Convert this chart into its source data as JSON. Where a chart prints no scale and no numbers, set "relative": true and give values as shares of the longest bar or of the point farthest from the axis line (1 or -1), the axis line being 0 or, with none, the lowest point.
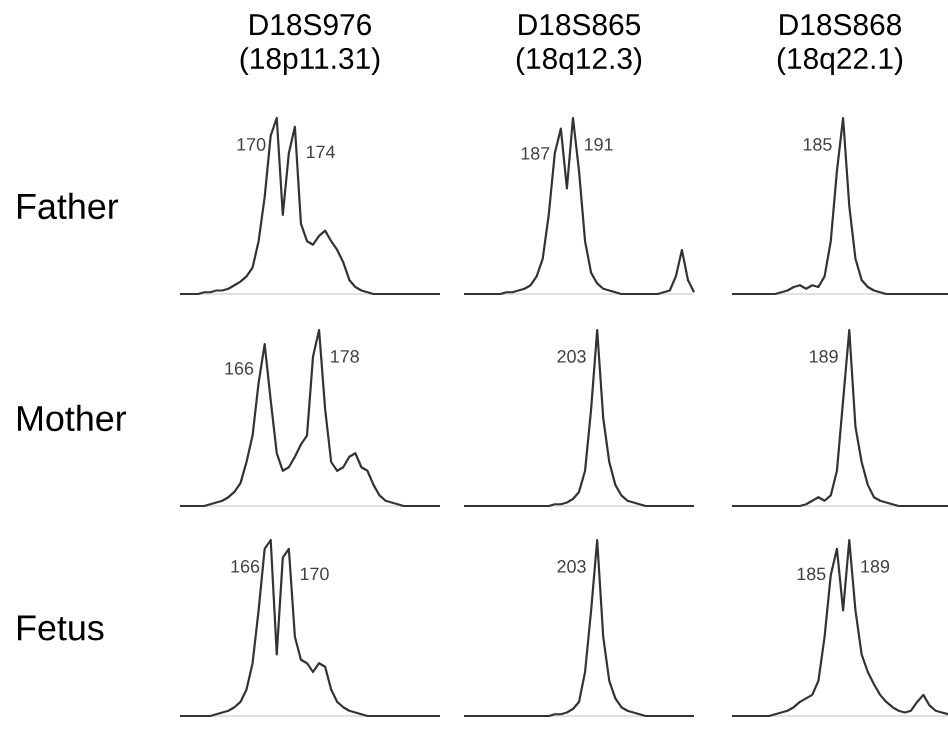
{
  "chart_data": [
    {
      "type": "line",
      "title": "D18S976",
      "subtitle": "(18p11.31)",
      "ylabel": "Father",
      "relative": true,
      "tick_labels": false,
      "color": "#333333",
      "annotations": [
        "170",
        "174"
      ],
      "categories": [
        null,
        null,
        null,
        null,
        null,
        null,
        null,
        null,
        null,
        null,
        null,
        null,
        null,
        null,
        null,
        null,
        null,
        null,
        null,
        null,
        null,
        null,
        null,
        null,
        null,
        null,
        null,
        null,
        null,
        null,
        null,
        null,
        null,
        null,
        null,
        null,
        null,
        null,
        null,
        null,
        null,
        null,
        null,
        null
      ],
      "values": [
        0,
        0,
        0,
        0,
        0.01,
        0.01,
        0.02,
        0.02,
        0.03,
        0.05,
        0.07,
        0.1,
        0.15,
        0.3,
        0.55,
        0.9,
        1.0,
        0.45,
        0.8,
        0.95,
        0.4,
        0.3,
        0.28,
        0.33,
        0.36,
        0.3,
        0.25,
        0.18,
        0.08,
        0.04,
        0.02,
        0.01,
        0,
        0,
        0,
        0,
        0,
        0,
        0,
        0,
        0,
        0,
        0,
        0
      ]
    },
    {
      "type": "line",
      "title": "D18S865",
      "subtitle": "(18q12.3)",
      "relative": true,
      "tick_labels": false,
      "color": "#333333",
      "annotations": [
        "187",
        "191"
      ],
      "categories": [
        null,
        null,
        null,
        null,
        null,
        null,
        null,
        null,
        null,
        null,
        null,
        null,
        null,
        null,
        null,
        null,
        null,
        null,
        null,
        null,
        null,
        null,
        null,
        null,
        null,
        null,
        null,
        null,
        null,
        null,
        null,
        null,
        null,
        null,
        null,
        null,
        null,
        null,
        null
      ],
      "values": [
        0,
        0,
        0,
        0,
        0,
        0,
        0,
        0.01,
        0.01,
        0.02,
        0.03,
        0.05,
        0.1,
        0.2,
        0.45,
        0.8,
        0.94,
        0.6,
        1.0,
        0.7,
        0.3,
        0.12,
        0.06,
        0.03,
        0.02,
        0.01,
        0,
        0,
        0,
        0,
        0,
        0,
        0,
        0.01,
        0.02,
        0.1,
        0.25,
        0.08,
        0.01
      ]
    },
    {
      "type": "line",
      "title": "D18S868",
      "subtitle": "(18q22.1)",
      "relative": true,
      "tick_labels": false,
      "color": "#333333",
      "annotations": [
        "185"
      ],
      "categories": [
        null,
        null,
        null,
        null,
        null,
        null,
        null,
        null,
        null,
        null,
        null,
        null,
        null,
        null,
        null,
        null,
        null,
        null,
        null,
        null,
        null,
        null,
        null,
        null,
        null,
        null,
        null,
        null,
        null,
        null,
        null,
        null,
        null,
        null,
        null,
        null
      ],
      "values": [
        0,
        0,
        0,
        0,
        0,
        0,
        0,
        0,
        0.01,
        0.02,
        0.04,
        0.05,
        0.03,
        0.05,
        0.04,
        0.1,
        0.3,
        0.7,
        1.0,
        0.5,
        0.2,
        0.08,
        0.04,
        0.02,
        0.01,
        0,
        0,
        0,
        0,
        0,
        0,
        0,
        0,
        0,
        0,
        0
      ]
    },
    {
      "type": "line",
      "ylabel": "Mother",
      "relative": true,
      "tick_labels": false,
      "color": "#333333",
      "annotations": [
        "166",
        "178"
      ],
      "categories": [
        null,
        null,
        null,
        null,
        null,
        null,
        null,
        null,
        null,
        null,
        null,
        null,
        null,
        null,
        null,
        null,
        null,
        null,
        null,
        null,
        null,
        null,
        null,
        null,
        null,
        null,
        null,
        null,
        null,
        null,
        null,
        null,
        null,
        null,
        null,
        null,
        null,
        null,
        null,
        null,
        null,
        null,
        null,
        null
      ],
      "values": [
        0,
        0,
        0,
        0,
        0,
        0.01,
        0.02,
        0.03,
        0.05,
        0.08,
        0.13,
        0.25,
        0.4,
        0.7,
        0.92,
        0.6,
        0.3,
        0.2,
        0.22,
        0.28,
        0.35,
        0.4,
        0.85,
        1.0,
        0.55,
        0.25,
        0.2,
        0.22,
        0.28,
        0.3,
        0.22,
        0.2,
        0.12,
        0.06,
        0.03,
        0.02,
        0.01,
        0,
        0,
        0,
        0,
        0,
        0,
        0
      ]
    },
    {
      "type": "line",
      "relative": true,
      "tick_labels": false,
      "color": "#333333",
      "annotations": [
        "203"
      ],
      "categories": [
        null,
        null,
        null,
        null,
        null,
        null,
        null,
        null,
        null,
        null,
        null,
        null,
        null,
        null,
        null,
        null,
        null,
        null,
        null,
        null,
        null,
        null,
        null,
        null,
        null,
        null,
        null,
        null,
        null,
        null,
        null,
        null,
        null,
        null,
        null,
        null,
        null,
        null,
        null
      ],
      "values": [
        0,
        0,
        0,
        0,
        0,
        0,
        0,
        0,
        0,
        0,
        0,
        0,
        0,
        0,
        0,
        0.01,
        0.01,
        0.02,
        0.04,
        0.08,
        0.2,
        0.55,
        1.0,
        0.5,
        0.25,
        0.12,
        0.06,
        0.03,
        0.02,
        0.01,
        0,
        0,
        0,
        0,
        0,
        0,
        0,
        0,
        0
      ]
    },
    {
      "type": "line",
      "relative": true,
      "tick_labels": false,
      "color": "#333333",
      "annotations": [
        "189"
      ],
      "categories": [
        null,
        null,
        null,
        null,
        null,
        null,
        null,
        null,
        null,
        null,
        null,
        null,
        null,
        null,
        null,
        null,
        null,
        null,
        null,
        null,
        null,
        null,
        null,
        null,
        null,
        null,
        null,
        null,
        null,
        null,
        null,
        null,
        null,
        null,
        null,
        null
      ],
      "values": [
        0,
        0,
        0,
        0,
        0,
        0,
        0,
        0,
        0,
        0,
        0,
        0,
        0.01,
        0.03,
        0.05,
        0.03,
        0.06,
        0.2,
        0.6,
        1.0,
        0.45,
        0.25,
        0.12,
        0.05,
        0.03,
        0.02,
        0.01,
        0,
        0,
        0,
        0,
        0,
        0,
        0,
        0,
        0
      ]
    },
    {
      "type": "line",
      "ylabel": "Fetus",
      "relative": true,
      "tick_labels": false,
      "color": "#333333",
      "annotations": [
        "166",
        "170"
      ],
      "categories": [
        null,
        null,
        null,
        null,
        null,
        null,
        null,
        null,
        null,
        null,
        null,
        null,
        null,
        null,
        null,
        null,
        null,
        null,
        null,
        null,
        null,
        null,
        null,
        null,
        null,
        null,
        null,
        null,
        null,
        null,
        null,
        null,
        null,
        null,
        null,
        null,
        null,
        null,
        null,
        null,
        null,
        null,
        null,
        null
      ],
      "values": [
        0,
        0,
        0,
        0,
        0,
        0,
        0.01,
        0.02,
        0.03,
        0.05,
        0.08,
        0.15,
        0.3,
        0.6,
        0.95,
        1.0,
        0.35,
        0.9,
        0.95,
        0.45,
        0.32,
        0.3,
        0.25,
        0.3,
        0.28,
        0.15,
        0.08,
        0.05,
        0.03,
        0.02,
        0.01,
        0,
        0,
        0,
        0,
        0,
        0,
        0,
        0,
        0,
        0,
        0,
        0,
        0
      ]
    },
    {
      "type": "line",
      "relative": true,
      "tick_labels": false,
      "color": "#333333",
      "annotations": [
        "203"
      ],
      "categories": [
        null,
        null,
        null,
        null,
        null,
        null,
        null,
        null,
        null,
        null,
        null,
        null,
        null,
        null,
        null,
        null,
        null,
        null,
        null,
        null,
        null,
        null,
        null,
        null,
        null,
        null,
        null,
        null,
        null,
        null,
        null,
        null,
        null,
        null,
        null,
        null,
        null,
        null,
        null
      ],
      "values": [
        0,
        0,
        0,
        0,
        0,
        0,
        0,
        0,
        0,
        0,
        0,
        0,
        0,
        0,
        0,
        0.01,
        0.01,
        0.02,
        0.04,
        0.08,
        0.25,
        0.6,
        1.0,
        0.45,
        0.2,
        0.1,
        0.05,
        0.03,
        0.02,
        0.01,
        0,
        0,
        0,
        0,
        0,
        0,
        0,
        0,
        0
      ]
    },
    {
      "type": "line",
      "relative": true,
      "tick_labels": false,
      "color": "#333333",
      "annotations": [
        "185",
        "189"
      ],
      "categories": [
        null,
        null,
        null,
        null,
        null,
        null,
        null,
        null,
        null,
        null,
        null,
        null,
        null,
        null,
        null,
        null,
        null,
        null,
        null,
        null,
        null,
        null,
        null,
        null,
        null,
        null,
        null,
        null,
        null,
        null,
        null,
        null,
        null,
        null,
        null,
        null
      ],
      "values": [
        0,
        0,
        0,
        0,
        0,
        0,
        0,
        0.01,
        0.02,
        0.03,
        0.05,
        0.08,
        0.1,
        0.12,
        0.2,
        0.45,
        0.8,
        0.95,
        0.6,
        1.0,
        0.6,
        0.35,
        0.25,
        0.18,
        0.12,
        0.08,
        0.05,
        0.03,
        0.02,
        0.03,
        0.08,
        0.12,
        0.06,
        0.03,
        0.02,
        0.01
      ]
    }
  ]
}
